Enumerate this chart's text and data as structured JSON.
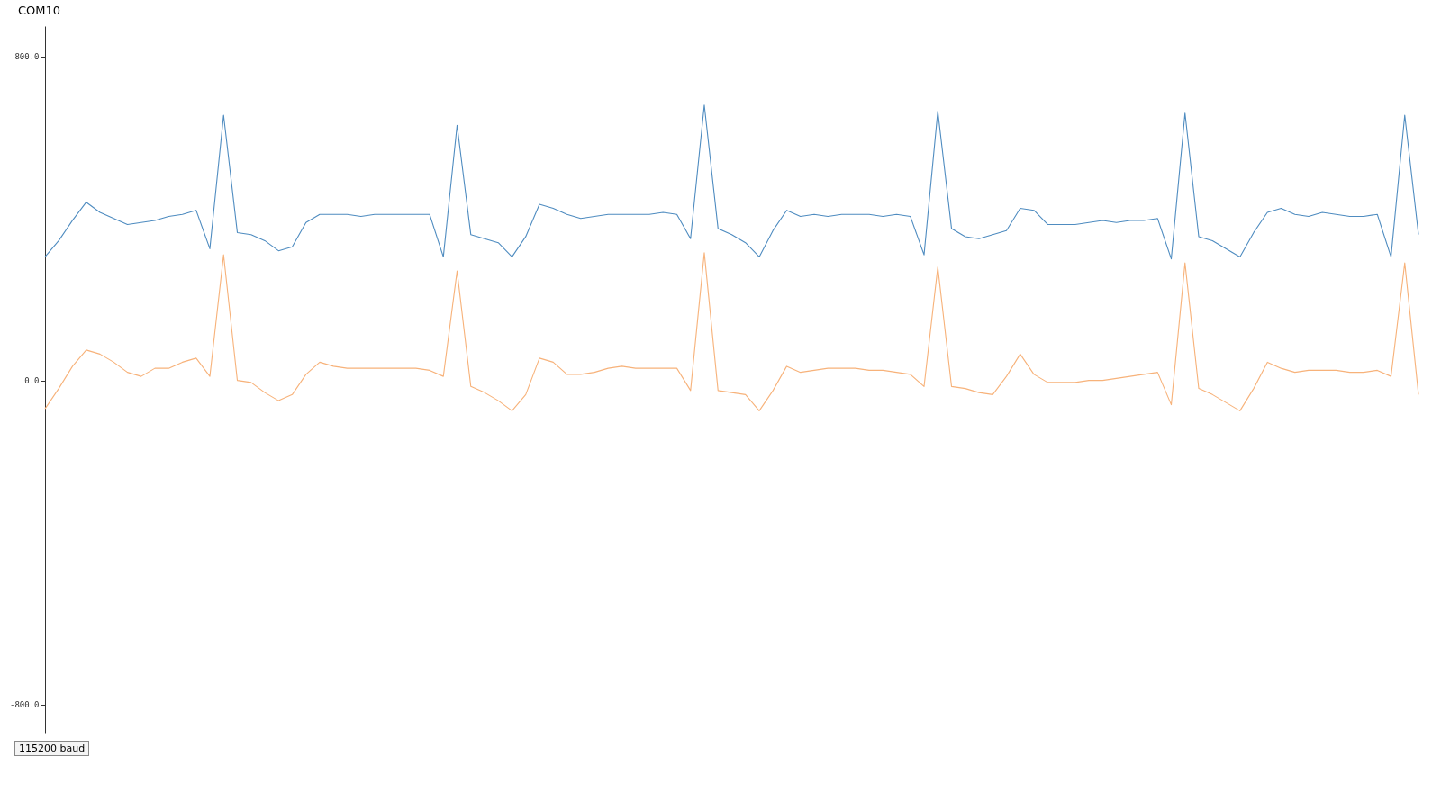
{
  "chart_data": {
    "type": "line",
    "title": "COM10",
    "annotations": [
      "115200 baud"
    ],
    "categories": [
      null,
      null,
      null,
      null,
      null,
      null,
      null,
      null,
      null,
      null,
      null,
      null,
      null,
      null,
      null,
      null,
      null,
      null,
      null,
      null,
      null,
      null,
      null,
      null,
      null,
      null,
      null,
      null,
      null,
      null,
      null,
      null,
      null,
      null,
      null,
      null,
      null,
      null,
      null,
      null,
      null,
      null,
      null,
      null,
      null,
      null,
      null,
      null,
      null,
      null,
      null,
      null,
      null,
      null,
      null,
      null,
      null,
      null,
      null,
      null,
      null,
      null,
      null,
      null,
      null,
      null,
      null,
      null,
      null,
      null,
      null,
      null,
      null,
      null,
      null,
      null,
      null,
      null,
      null,
      null,
      null,
      null,
      null,
      null,
      null,
      null,
      null,
      null,
      null,
      null,
      null,
      null,
      null,
      null,
      null,
      null,
      null,
      null,
      null,
      null,
      null
    ],
    "series": [
      {
        "color": "#4f8cc0",
        "values": [
          305,
          345,
          395,
          440,
          415,
          400,
          385,
          390,
          395,
          405,
          410,
          420,
          325,
          655,
          365,
          360,
          345,
          320,
          330,
          390,
          410,
          410,
          410,
          405,
          410,
          410,
          410,
          410,
          410,
          305,
          630,
          360,
          350,
          340,
          305,
          355,
          435,
          425,
          410,
          400,
          405,
          410,
          410,
          410,
          410,
          415,
          410,
          350,
          680,
          375,
          360,
          340,
          305,
          370,
          420,
          405,
          410,
          405,
          410,
          410,
          410,
          405,
          410,
          405,
          310,
          665,
          375,
          355,
          350,
          360,
          370,
          425,
          420,
          385,
          385,
          385,
          390,
          395,
          390,
          395,
          395,
          400,
          300,
          660,
          355,
          345,
          325,
          305,
          365,
          415,
          425,
          410,
          405,
          415,
          410,
          405,
          405,
          410,
          305,
          655,
          360
        ]
      },
      {
        "color": "#f7b27a",
        "values": [
          -70,
          -20,
          35,
          75,
          65,
          45,
          20,
          10,
          30,
          30,
          45,
          55,
          10,
          310,
          0,
          -5,
          -30,
          -50,
          -35,
          15,
          45,
          35,
          30,
          30,
          30,
          30,
          30,
          30,
          25,
          10,
          270,
          -15,
          -30,
          -50,
          -75,
          -35,
          55,
          45,
          15,
          15,
          20,
          30,
          35,
          30,
          30,
          30,
          30,
          -25,
          315,
          -25,
          -30,
          -35,
          -75,
          -25,
          35,
          20,
          25,
          30,
          30,
          30,
          25,
          25,
          20,
          15,
          -15,
          280,
          -15,
          -20,
          -30,
          -35,
          10,
          65,
          15,
          -5,
          -5,
          -5,
          0,
          0,
          5,
          10,
          15,
          20,
          -60,
          290,
          -20,
          -35,
          -55,
          -75,
          -20,
          45,
          30,
          20,
          25,
          25,
          25,
          20,
          20,
          25,
          10,
          290,
          -35
        ]
      }
    ],
    "ylim": [
      -870,
      875
    ],
    "yticks": [
      {
        "value": 800,
        "label": "800.0"
      },
      {
        "value": 0,
        "label": "0.0"
      },
      {
        "value": -800,
        "label": "-800.0"
      }
    ],
    "grid": false,
    "line_style": "solid"
  }
}
